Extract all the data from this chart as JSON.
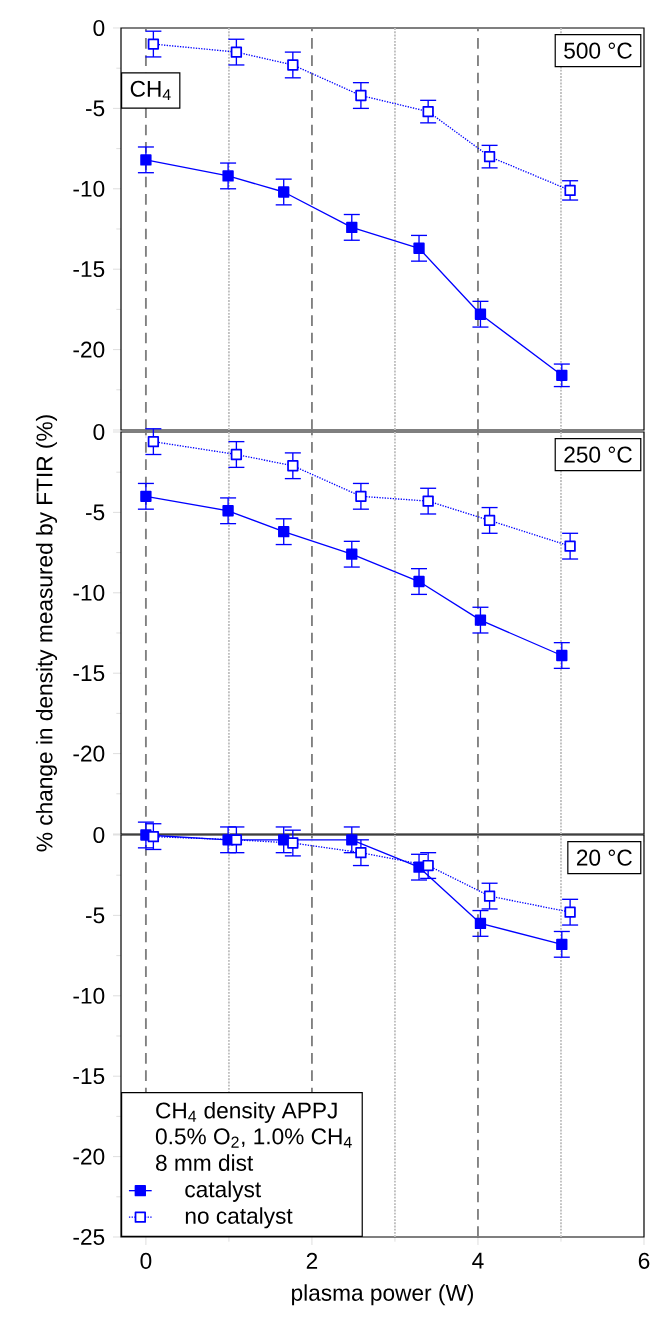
{
  "chart_data": [
    {
      "type": "line",
      "title": "500 °C",
      "annotations": [
        "CH$_{4}$"
      ],
      "xlim": [
        -0.3,
        6
      ],
      "xticks": [
        0,
        2,
        4,
        6
      ],
      "ylim": [
        -25,
        0
      ],
      "yticks": [
        0,
        -5,
        -10,
        -15,
        -20,
        {
          "value": -25,
          "label": null
        }
      ],
      "tick_labels": "y",
      "grid": false,
      "ref_lines": [
        {
          "axis": "x",
          "value": 0,
          "color": "#808080",
          "line_style": "dashed"
        },
        {
          "axis": "x",
          "value": 2,
          "color": "#808080",
          "line_style": "dashed"
        },
        {
          "axis": "x",
          "value": 4,
          "color": "#808080",
          "line_style": "dashed"
        },
        {
          "axis": "x",
          "value": 1,
          "color": "#c0c0c0",
          "line_style": "dotted"
        },
        {
          "axis": "x",
          "value": 3,
          "color": "#c0c0c0",
          "line_style": "dotted"
        },
        {
          "axis": "x",
          "value": 5,
          "color": "#c0c0c0",
          "line_style": "dotted"
        }
      ],
      "series": [
        {
          "color": "#0000ff",
          "marker": "square",
          "line_style": "solid",
          "x": [
            0,
            0.99,
            1.66,
            2.48,
            3.29,
            4.03,
            5.01
          ],
          "values": [
            -8.2,
            -9.2,
            -10.2,
            -12.4,
            -13.7,
            -17.8,
            -21.6
          ],
          "errors": [
            0.8,
            0.8,
            0.8,
            0.8,
            0.8,
            0.8,
            0.7
          ]
        },
        {
          "color": "#0000ff",
          "marker": "square",
          "line_style": "dotted",
          "x": [
            0.09,
            1.09,
            1.77,
            2.59,
            3.4,
            4.14,
            5.11
          ],
          "values": [
            -1.0,
            -1.5,
            -2.3,
            -4.2,
            -5.2,
            -8.0,
            -10.1
          ],
          "errors": [
            0.8,
            0.8,
            0.8,
            0.8,
            0.7,
            0.7,
            0.6
          ]
        }
      ]
    },
    {
      "type": "line",
      "title": "250 °C",
      "ylabel": "% change in density measured by FTIR (%)",
      "xlim": [
        -0.3,
        6
      ],
      "xticks": [
        0,
        2,
        4,
        6
      ],
      "ylim": [
        -25,
        0
      ],
      "yticks": [
        0,
        -5,
        -10,
        -15,
        -20,
        {
          "value": -25,
          "label": null
        }
      ],
      "tick_labels": "y",
      "grid": false,
      "ref_lines": [
        {
          "axis": "x",
          "value": 0,
          "color": "#808080",
          "line_style": "dashed"
        },
        {
          "axis": "x",
          "value": 2,
          "color": "#808080",
          "line_style": "dashed"
        },
        {
          "axis": "x",
          "value": 4,
          "color": "#808080",
          "line_style": "dashed"
        },
        {
          "axis": "x",
          "value": 1,
          "color": "#c0c0c0",
          "line_style": "dotted"
        },
        {
          "axis": "x",
          "value": 3,
          "color": "#c0c0c0",
          "line_style": "dotted"
        },
        {
          "axis": "x",
          "value": 5,
          "color": "#c0c0c0",
          "line_style": "dotted"
        }
      ],
      "series": [
        {
          "color": "#0000ff",
          "marker": "square",
          "line_style": "solid",
          "x": [
            0,
            0.99,
            1.66,
            2.48,
            3.29,
            4.03,
            5.01
          ],
          "values": [
            -4.0,
            -4.9,
            -6.2,
            -7.6,
            -9.3,
            -11.7,
            -13.9
          ],
          "errors": [
            0.8,
            0.8,
            0.8,
            0.8,
            0.8,
            0.8,
            0.8
          ]
        },
        {
          "color": "#0000ff",
          "marker": "square",
          "line_style": "dotted",
          "x": [
            0.09,
            1.09,
            1.77,
            2.59,
            3.4,
            4.14,
            5.11
          ],
          "values": [
            -0.6,
            -1.4,
            -2.1,
            -4.0,
            -4.3,
            -5.5,
            -7.1
          ],
          "errors": [
            0.8,
            0.8,
            0.8,
            0.8,
            0.8,
            0.8,
            0.8
          ]
        }
      ]
    },
    {
      "type": "line",
      "title": "20 °C",
      "xlabel": "plasma power (W)",
      "legend_title": "CH$_{4}$ density APPJ",
      "annotations": [
        "0.5% O$_{2}$, 1.0% CH$_{4}$",
        "8 mm dist"
      ],
      "legend": "bottom left",
      "xlim": [
        -0.3,
        6
      ],
      "xticks": [
        0,
        2,
        4,
        6
      ],
      "ylim": [
        -25,
        0
      ],
      "yticks": [
        0,
        -5,
        -10,
        -15,
        -20,
        -25
      ],
      "grid": false,
      "ref_lines": [
        {
          "axis": "x",
          "value": 0,
          "color": "#808080",
          "line_style": "dashed"
        },
        {
          "axis": "x",
          "value": 2,
          "color": "#808080",
          "line_style": "dashed"
        },
        {
          "axis": "x",
          "value": 4,
          "color": "#808080",
          "line_style": "dashed"
        },
        {
          "axis": "x",
          "value": 1,
          "color": "#c0c0c0",
          "line_style": "dotted"
        },
        {
          "axis": "x",
          "value": 3,
          "color": "#c0c0c0",
          "line_style": "dotted"
        },
        {
          "axis": "x",
          "value": 5,
          "color": "#c0c0c0",
          "line_style": "dotted"
        }
      ],
      "series": [
        {
          "name": "catalyst",
          "color": "#0000ff",
          "marker": "square",
          "line_style": "solid",
          "x": [
            0,
            0.99,
            1.66,
            2.48,
            3.29,
            4.03,
            5.01
          ],
          "values": [
            0,
            -0.3,
            -0.3,
            -0.3,
            -2.0,
            -5.5,
            -6.8
          ],
          "errors": [
            0.8,
            0.8,
            0.8,
            0.8,
            0.8,
            0.8,
            0.8
          ]
        },
        {
          "name": "no catalyst",
          "color": "#0000ff",
          "marker": "square",
          "line_style": "dotted",
          "x": [
            0.09,
            1.09,
            1.77,
            2.59,
            3.4,
            4.14,
            5.11
          ],
          "values": [
            -0.1,
            -0.3,
            -0.5,
            -1.1,
            -1.9,
            -3.8,
            -4.8
          ],
          "errors": [
            0.8,
            0.8,
            0.8,
            0.8,
            0.8,
            0.8,
            0.8
          ]
        }
      ]
    }
  ]
}
